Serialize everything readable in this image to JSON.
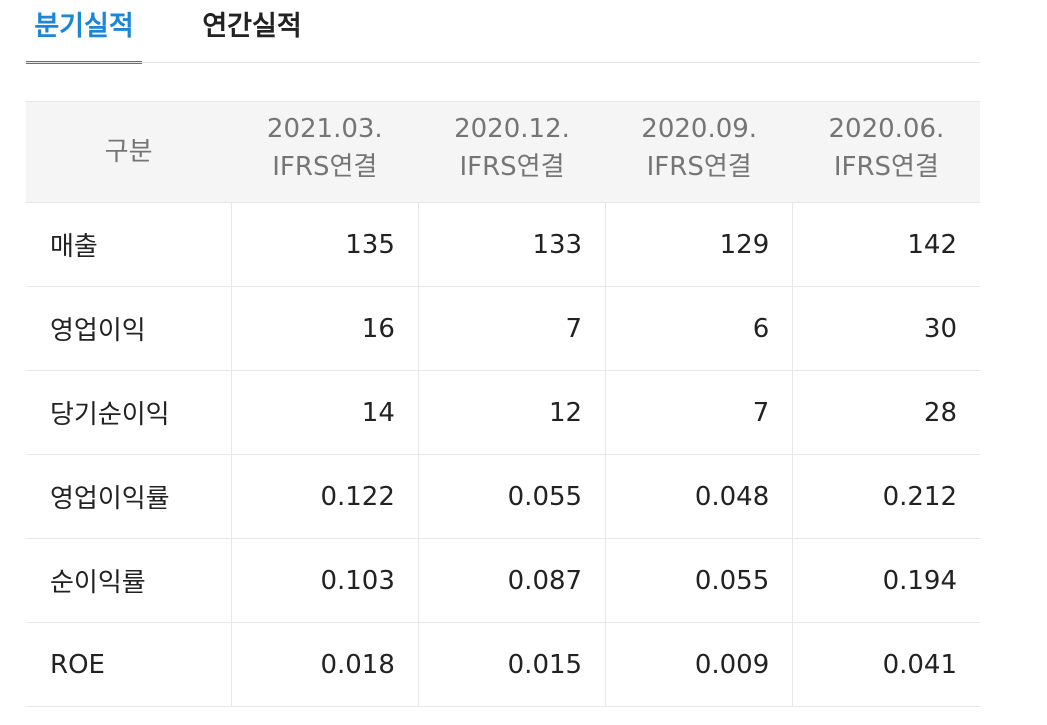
{
  "tabs": {
    "quarterly": "분기실적",
    "annual": "연간실적"
  },
  "table": {
    "header": {
      "label": "구분",
      "periods": [
        {
          "date": "2021.03.",
          "basis": "IFRS연결"
        },
        {
          "date": "2020.12.",
          "basis": "IFRS연결"
        },
        {
          "date": "2020.09.",
          "basis": "IFRS연결"
        },
        {
          "date": "2020.06.",
          "basis": "IFRS연결"
        }
      ]
    },
    "rows": [
      {
        "label": "매출",
        "values": [
          "135",
          "133",
          "129",
          "142"
        ]
      },
      {
        "label": "영업이익",
        "values": [
          "16",
          "7",
          "6",
          "30"
        ]
      },
      {
        "label": "당기순이익",
        "values": [
          "14",
          "12",
          "7",
          "28"
        ]
      },
      {
        "label": "영업이익률",
        "values": [
          "0.122",
          "0.055",
          "0.048",
          "0.212"
        ]
      },
      {
        "label": "순이익률",
        "values": [
          "0.103",
          "0.087",
          "0.055",
          "0.194"
        ]
      },
      {
        "label": "ROE",
        "values": [
          "0.018",
          "0.015",
          "0.009",
          "0.041"
        ]
      }
    ]
  },
  "colors": {
    "accent": "#1a86d8",
    "header_bg": "#f5f5f5",
    "header_text": "#757575",
    "body_text": "#222222",
    "border": "#e8e8e8"
  }
}
